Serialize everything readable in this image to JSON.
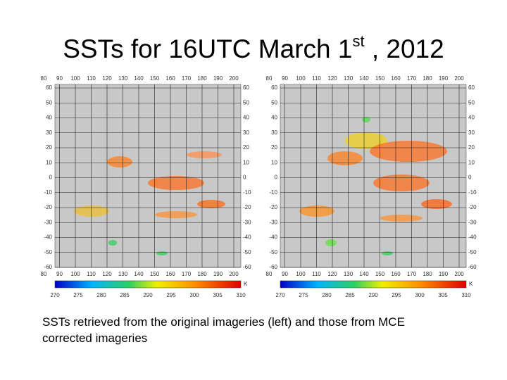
{
  "title": {
    "main": "SSTs for 16UTC March 1",
    "sup": "st",
    "tail": " , 2012"
  },
  "caption": {
    "lines": [
      "SSTs retrieved from the original imageries (left) and those from MCE",
      "corrected imageries"
    ]
  },
  "maps": [
    {
      "lon_labels": [
        80,
        90,
        100,
        110,
        120,
        130,
        140,
        150,
        160,
        170,
        180,
        190,
        200
      ],
      "lat_labels": [
        60,
        50,
        40,
        30,
        20,
        10,
        0,
        -10,
        -20,
        -30,
        -40,
        -50,
        -60
      ],
      "colorbar_labels": [
        270,
        275,
        280,
        285,
        290,
        295,
        300,
        305,
        310
      ],
      "unit": "K"
    },
    {
      "lon_labels": [
        80,
        90,
        100,
        110,
        120,
        130,
        140,
        150,
        160,
        170,
        180,
        190,
        200
      ],
      "lat_labels": [
        60,
        50,
        40,
        30,
        20,
        10,
        0,
        -10,
        -20,
        -30,
        -40,
        -50,
        -60
      ],
      "colorbar_labels": [
        270,
        275,
        280,
        285,
        290,
        295,
        300,
        305,
        310
      ],
      "unit": "K"
    }
  ]
}
